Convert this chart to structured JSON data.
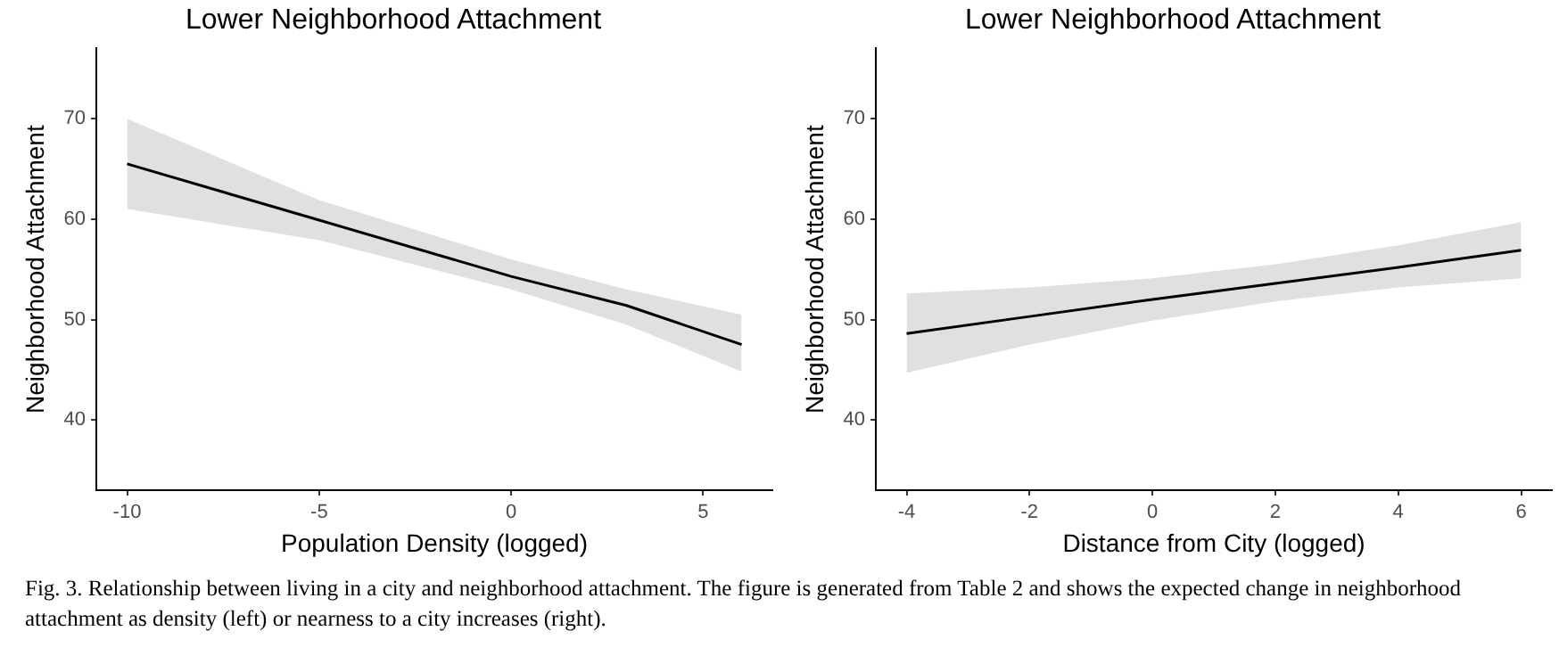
{
  "chart_data": [
    {
      "type": "line",
      "title": "Lower Neighborhood Attachment",
      "xlabel": "Population Density (logged)",
      "ylabel": "Neighborhood Attachment",
      "xlim": [
        -10.8,
        6.8
      ],
      "xticks": [
        -10,
        -5,
        0,
        5
      ],
      "ylim": [
        33,
        77
      ],
      "yticks": [
        40,
        50,
        60,
        70
      ],
      "grid": false,
      "legend": false,
      "marker": "none",
      "line_style": "solid",
      "x": [
        -10,
        -5,
        0,
        3,
        6
      ],
      "series": [
        {
          "color": "#000000",
          "values": [
            65.5,
            59.9,
            54.3,
            51.4,
            47.5
          ],
          "lower": [
            61.0,
            57.9,
            53.0,
            49.5,
            44.8
          ],
          "upper": [
            70.0,
            61.9,
            56.0,
            53.0,
            50.5
          ]
        }
      ],
      "annotations": [
        "Fig. 3. Relationship between living in a city and neighborhood attachment. The figure is generated from Table 2 and shows the expected change in neighborhood attachment as density (left) or nearness to a city increases (right)."
      ]
    },
    {
      "type": "line",
      "title": "Lower Neighborhood Attachment",
      "xlabel": "Distance from City (logged)",
      "ylabel": "Neighborhood Attachment",
      "xlim": [
        -4.5,
        6.5
      ],
      "xticks": [
        -4,
        -2,
        0,
        2,
        4,
        6
      ],
      "ylim": [
        33,
        77
      ],
      "yticks": [
        40,
        50,
        60,
        70
      ],
      "grid": false,
      "legend": false,
      "marker": "none",
      "line_style": "solid",
      "x": [
        -4,
        -2,
        0,
        2,
        4,
        6
      ],
      "series": [
        {
          "color": "#000000",
          "values": [
            48.6,
            50.3,
            52.0,
            53.6,
            55.2,
            56.9
          ],
          "lower": [
            44.7,
            47.5,
            49.9,
            51.8,
            53.2,
            54.1
          ],
          "upper": [
            52.6,
            53.2,
            54.1,
            55.5,
            57.4,
            59.7
          ]
        }
      ]
    }
  ]
}
